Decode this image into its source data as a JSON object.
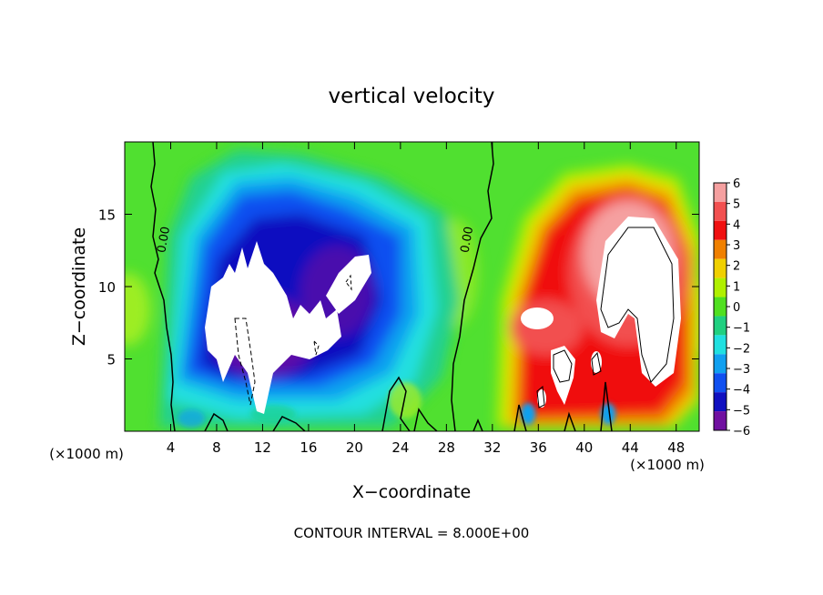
{
  "chart_data": {
    "type": "heatmap",
    "title": "vertical velocity",
    "xlabel": "X−coordinate",
    "ylabel": "Z−coordinate",
    "x_unit_left": "(×1000 m)",
    "x_unit_right": "(×1000 m)",
    "footer": "CONTOUR INTERVAL = 8.000E+00",
    "xlim": [
      0,
      50
    ],
    "ylim": [
      0,
      20
    ],
    "x_ticks": [
      4,
      8,
      12,
      16,
      20,
      24,
      28,
      32,
      36,
      40,
      44,
      48
    ],
    "x_tick_labels": [
      "4",
      "8",
      "12",
      "16",
      "20",
      "24",
      "28",
      "32",
      "36",
      "40",
      "44",
      "48"
    ],
    "y_ticks": [
      5,
      10,
      15
    ],
    "y_tick_labels": [
      "5",
      "10",
      "15"
    ],
    "colorbar": {
      "levels": [
        6,
        5,
        4,
        3,
        2,
        1,
        0,
        -1,
        -2,
        -3,
        -4,
        -5,
        -6
      ],
      "labels": [
        "6",
        "5",
        "4",
        "3",
        "2",
        "1",
        "0",
        "−1",
        "−2",
        "−3",
        "−4",
        "−5",
        "−6"
      ],
      "colors": [
        "#f5a0a0",
        "#f25050",
        "#f01010",
        "#f08000",
        "#f0d000",
        "#b0f000",
        "#50e020",
        "#20d080",
        "#20e0e0",
        "#10a0f0",
        "#1050f0",
        "#1010c0",
        "#7010a0"
      ]
    },
    "contour_labels": [
      {
        "text": "0.00",
        "x": 3.7,
        "z": 13.2
      },
      {
        "text": "0.00",
        "x": 30.1,
        "z": 13.2
      }
    ],
    "features": [
      {
        "type": "downdraft",
        "x_center": 15,
        "z_center": 10,
        "peak": -6
      },
      {
        "type": "updraft",
        "x_center": 43,
        "z_center": 10,
        "peak": 6
      }
    ]
  }
}
